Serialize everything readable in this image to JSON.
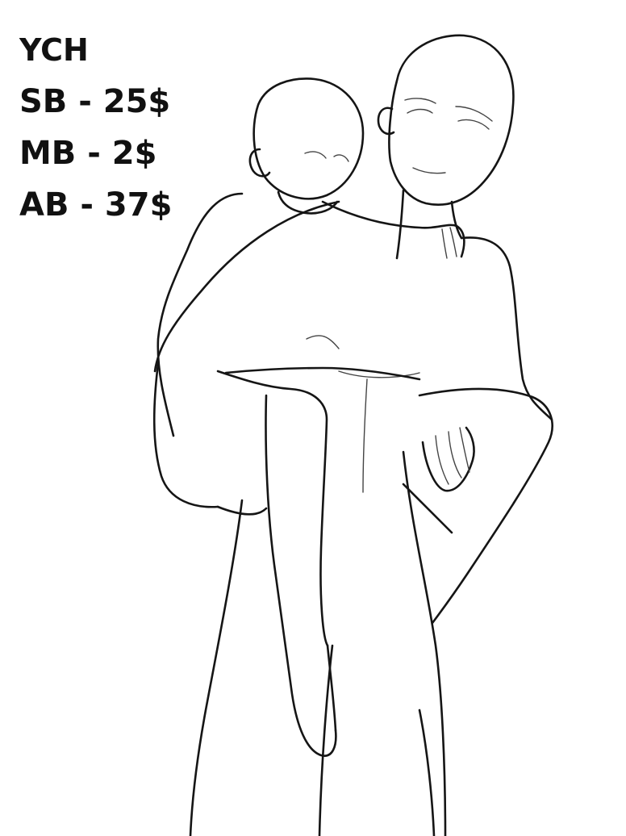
{
  "ych": {
    "title": "YCH",
    "prices": [
      {
        "label": "SB - 25$"
      },
      {
        "label": "MB - 2$"
      },
      {
        "label": "AB - 37$"
      }
    ]
  },
  "artwork": {
    "icon": "line-art-base-two-figures-piggyback",
    "line_color": "#151515",
    "background": "#ffffff"
  }
}
